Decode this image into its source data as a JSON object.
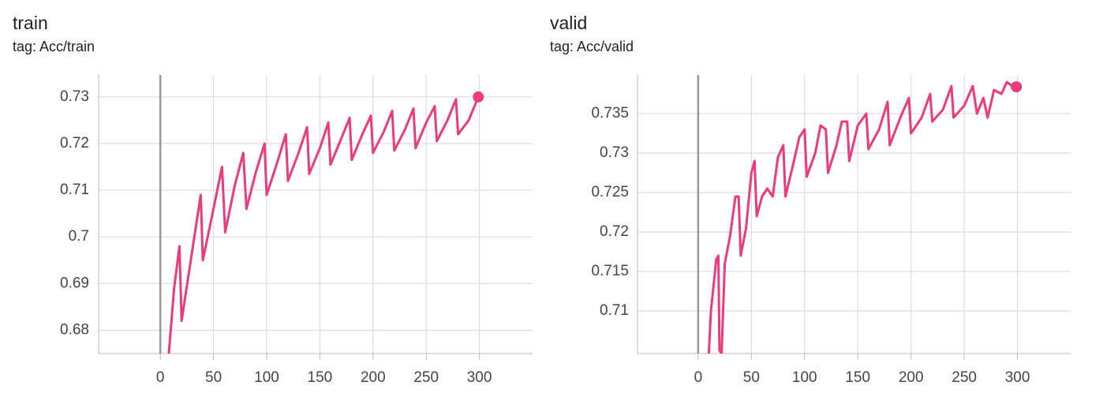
{
  "chart_data": [
    {
      "type": "line",
      "title": "train",
      "subtitle": "tag: Acc/train",
      "color": "#ec3a7a",
      "grid": true,
      "xlim": [
        -58,
        350
      ],
      "xticks": [
        0,
        50,
        100,
        150,
        200,
        250,
        300
      ],
      "ylim": [
        0.675,
        0.7347
      ],
      "yticks": [
        0.68,
        0.69,
        0.7,
        0.71,
        0.72,
        0.73
      ],
      "x": [
        8,
        13,
        18,
        20,
        30,
        38,
        40,
        50,
        58,
        61,
        70,
        78,
        81,
        90,
        98,
        100,
        110,
        118,
        120,
        130,
        138,
        140,
        150,
        158,
        160,
        170,
        178,
        180,
        190,
        198,
        200,
        210,
        218,
        220,
        230,
        238,
        240,
        250,
        258,
        260,
        270,
        278,
        280,
        290,
        299
      ],
      "values": [
        0.675,
        0.689,
        0.698,
        0.682,
        0.697,
        0.709,
        0.695,
        0.706,
        0.715,
        0.701,
        0.711,
        0.718,
        0.706,
        0.714,
        0.72,
        0.709,
        0.716,
        0.722,
        0.712,
        0.718,
        0.7235,
        0.7135,
        0.719,
        0.7245,
        0.7155,
        0.721,
        0.7255,
        0.7165,
        0.722,
        0.726,
        0.718,
        0.7225,
        0.727,
        0.7185,
        0.723,
        0.7275,
        0.719,
        0.7245,
        0.728,
        0.7205,
        0.725,
        0.7295,
        0.722,
        0.725,
        0.73
      ]
    },
    {
      "type": "line",
      "title": "valid",
      "subtitle": "tag: Acc/valid",
      "color": "#ec3a7a",
      "grid": true,
      "xlim": [
        -57,
        350
      ],
      "xticks": [
        0,
        50,
        100,
        150,
        200,
        250,
        300
      ],
      "ylim": [
        0.7046,
        0.7399
      ],
      "yticks": [
        0.71,
        0.715,
        0.72,
        0.725,
        0.73,
        0.735
      ],
      "x": [
        10,
        12,
        17,
        19,
        20,
        22,
        25,
        30,
        35,
        38,
        40,
        45,
        50,
        53,
        55,
        60,
        65,
        70,
        75,
        80,
        82,
        90,
        95,
        100,
        102,
        110,
        115,
        120,
        122,
        130,
        135,
        140,
        142,
        150,
        158,
        160,
        170,
        178,
        180,
        190,
        198,
        200,
        210,
        218,
        220,
        230,
        238,
        240,
        250,
        258,
        262,
        268,
        272,
        278,
        285,
        290,
        295,
        299
      ],
      "values": [
        0.7046,
        0.71,
        0.7165,
        0.717,
        0.705,
        0.7046,
        0.716,
        0.7195,
        0.7245,
        0.7245,
        0.717,
        0.7205,
        0.7275,
        0.729,
        0.722,
        0.7245,
        0.7255,
        0.7245,
        0.7295,
        0.731,
        0.7245,
        0.729,
        0.732,
        0.733,
        0.727,
        0.73,
        0.7335,
        0.733,
        0.7275,
        0.731,
        0.734,
        0.734,
        0.729,
        0.7335,
        0.735,
        0.7305,
        0.733,
        0.7365,
        0.731,
        0.7345,
        0.737,
        0.7325,
        0.7345,
        0.7375,
        0.734,
        0.7355,
        0.7385,
        0.7345,
        0.736,
        0.7385,
        0.735,
        0.737,
        0.7345,
        0.738,
        0.7375,
        0.739,
        0.7385,
        0.7384
      ]
    }
  ]
}
